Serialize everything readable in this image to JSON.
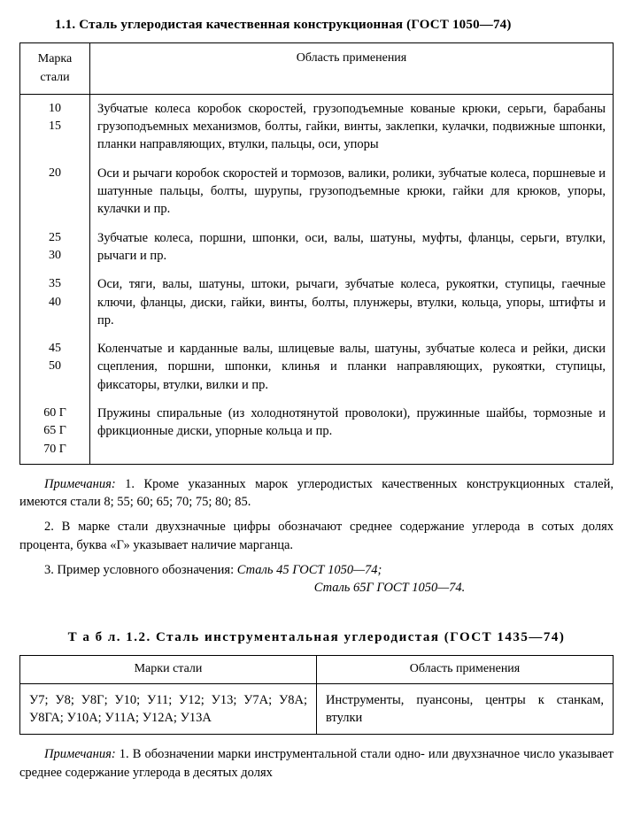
{
  "section1": {
    "title": "1.1. Сталь углеродистая качественная конструкционная (ГОСТ 1050—74)",
    "headers": {
      "marks": "Марка\nстали",
      "app": "Область применения"
    },
    "rows": [
      {
        "marks": "10\n15",
        "app": "Зубчатые колеса коробок скоростей, грузоподъемные кованые крюки, серьги, барабаны грузоподъемных механизмов, болты, гайки, винты, заклепки, кулачки, подвижные шпонки, планки направляющих, втулки, пальцы, оси, упоры"
      },
      {
        "marks": "20",
        "app": "Оси и рычаги коробок скоростей и тормозов, валики, ролики, зубчатые колеса, поршневые и шатунные пальцы, болты, шурупы, грузоподъемные крюки, гайки для крюков, упоры, кулачки и пр."
      },
      {
        "marks": "25\n30",
        "app": "Зубчатые колеса, поршни, шпонки, оси, валы, шатуны, муфты, фланцы, серьги, втулки, рычаги и пр."
      },
      {
        "marks": "35\n40",
        "app": "Оси, тяги, валы, шатуны, штоки, рычаги, зубчатые колеса, рукоятки, ступицы, гаечные ключи, фланцы, диски, гайки, винты, болты, плунжеры, втулки, кольца, упоры, штифты и пр."
      },
      {
        "marks": "45\n50",
        "app": "Коленчатые и карданные валы, шлицевые валы, шатуны, зубчатые колеса и рейки, диски сцепления, поршни, шпонки, клинья и планки направляющих, рукоятки, ступицы, фиксаторы, втулки, вилки и пр."
      },
      {
        "marks": "60 Г\n65 Г\n70 Г",
        "app": "Пружины спиральные (из холоднотянутой проволоки), пружинные шайбы, тормозные и фрикционные диски, упорные кольца и пр."
      }
    ],
    "notes": {
      "label": "Примечания:",
      "n1": "1. Кроме указанных марок углеродистых качественных конструкционных сталей, имеются стали 8; 55; 60; 65; 70; 75; 80; 85.",
      "n2": "2. В марке стали двухзначные цифры обозначают среднее содержание углерода в сотых долях процента, буква «Г» указывает наличие марганца.",
      "n3": "3. Пример условного обозначения:",
      "ex1": "Сталь 45 ГОСТ 1050—74;",
      "ex2": "Сталь 65Г ГОСТ 1050—74."
    }
  },
  "section2": {
    "title": "Т а б л.  1.2. Сталь инструментальная углеродистая (ГОСТ 1435—74)",
    "headers": {
      "marks": "Марки стали",
      "app": "Область применения"
    },
    "row": {
      "marks": "У7; У8; У8Г; У10; У11; У12; У13; У7А; У8А; У8ГА; У10А; У11А; У12А; У13А",
      "app": "Инструменты, пуансоны, центры к станкам, втулки"
    },
    "notes": {
      "label": "Примечания:",
      "n1": "1. В обозначении марки инструментальной стали одно- или двухзначное число указывает среднее содержание углерода в десятых долях"
    }
  }
}
